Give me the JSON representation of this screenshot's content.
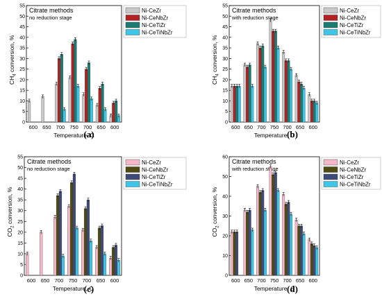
{
  "colors": {
    "Ni-CeZr": "#c8c8c8",
    "Ni-CeNbZr": "#b22222",
    "Ni-CeTiZr": "#1b7a72",
    "Ni-CeTiNbZr": "#3ec6e8",
    "Ni-CeZr-pink": "#f4b8c8",
    "Ni-CeNbZr-olive": "#4f4b12",
    "Ni-CeTiZr-navy": "#3f4a78"
  },
  "chart_data": [
    {
      "panel": "(a)",
      "type": "bar",
      "title": "Citrate methods",
      "subtitle": "no reduction stage",
      "xlabel": "Temperature, C",
      "ylabel_pre": "CH",
      "ylabel_sub": "4",
      "ylabel_post": " conversion, %",
      "ylim": [
        0,
        55
      ],
      "yticks": [
        0,
        5,
        10,
        15,
        20,
        25,
        30,
        35,
        40,
        45,
        50,
        55
      ],
      "categories": [
        "600",
        "650",
        "700",
        "750",
        "700",
        "650",
        "600"
      ],
      "series": [
        {
          "name": "Ni-CeZr",
          "color": "#c8c8c8",
          "values": [
            10,
            12,
            18,
            21,
            13,
            8,
            3
          ]
        },
        {
          "name": "Ni-CeNbZr",
          "color": "#b22222",
          "values": [
            null,
            null,
            30,
            37,
            25,
            16,
            9
          ]
        },
        {
          "name": "Ni-CeTiZr",
          "color": "#1b7a72",
          "values": [
            null,
            null,
            32,
            39,
            28,
            18,
            10
          ]
        },
        {
          "name": "Ni-CeTiNbZr",
          "color": "#3ec6e8",
          "values": [
            null,
            null,
            6,
            17,
            11,
            6,
            3
          ]
        }
      ]
    },
    {
      "panel": "(b)",
      "type": "bar",
      "title": "Citrate methods",
      "subtitle": "with reduction stage",
      "xlabel": "Temperature, C",
      "ylabel_pre": "CH",
      "ylabel_sub": "4",
      "ylabel_post": " conversion, %",
      "ylim": [
        0,
        55
      ],
      "yticks": [
        0,
        5,
        10,
        15,
        20,
        25,
        30,
        35,
        40,
        45,
        50,
        55
      ],
      "categories": [
        "600",
        "650",
        "700",
        "750",
        "700",
        "650",
        "600"
      ],
      "series": [
        {
          "name": "Ni-CeZr",
          "color": "#c8c8c8",
          "values": [
            17,
            27,
            37,
            48,
            33,
            22,
            13
          ]
        },
        {
          "name": "Ni-CeNbZr",
          "color": "#b22222",
          "values": [
            17,
            26,
            35,
            43,
            29,
            19,
            10
          ]
        },
        {
          "name": "Ni-CeTiZr",
          "color": "#1b7a72",
          "values": [
            17,
            27,
            36,
            43,
            29,
            18,
            10
          ]
        },
        {
          "name": "Ni-CeTiNbZr",
          "color": "#3ec6e8",
          "values": [
            17,
            17,
            26,
            35,
            25,
            16,
            9
          ]
        }
      ]
    },
    {
      "panel": "(c)",
      "type": "bar",
      "title": "Citrate methods",
      "subtitle": "no reduction stage",
      "xlabel": "Temperature, C",
      "ylabel_pre": "CO",
      "ylabel_sub": "2",
      "ylabel_post": " conversion, %",
      "ylim": [
        0,
        55
      ],
      "yticks": [
        0,
        5,
        10,
        15,
        20,
        25,
        30,
        35,
        40,
        45,
        50,
        55
      ],
      "categories": [
        "600",
        "650",
        "700",
        "750",
        "700",
        "650",
        "600"
      ],
      "series": [
        {
          "name": "Ni-CeZr",
          "color": "#f4b8c8",
          "values": [
            10,
            20,
            27,
            32,
            21,
            13,
            8
          ]
        },
        {
          "name": "Ni-CeNbZr",
          "color": "#4f4b12",
          "values": [
            null,
            null,
            37,
            43,
            31,
            22,
            13
          ]
        },
        {
          "name": "Ni-CeTiZr",
          "color": "#3f4a78",
          "values": [
            null,
            null,
            39,
            47,
            35,
            23,
            14
          ]
        },
        {
          "name": "Ni-CeTiNbZr",
          "color": "#3ec6e8",
          "values": [
            null,
            null,
            9,
            22,
            16,
            10,
            7
          ]
        }
      ]
    },
    {
      "panel": "(d)",
      "type": "bar",
      "title": "Citrate methods",
      "subtitle": "with reduction stage",
      "xlabel": "Temperature, C",
      "ylabel_pre": "CO",
      "ylabel_sub": "2",
      "ylabel_post": " conversion, %",
      "ylim": [
        0,
        60
      ],
      "yticks": [
        0,
        10,
        20,
        30,
        40,
        50,
        60
      ],
      "categories": [
        "600",
        "650",
        "700",
        "750",
        "700",
        "650",
        "600"
      ],
      "series": [
        {
          "name": "Ni-CeZr",
          "color": "#f4b8c8",
          "values": [
            22,
            33,
            45,
            55,
            41,
            28,
            18
          ]
        },
        {
          "name": "Ni-CeNbZr",
          "color": "#4f4b12",
          "values": [
            22,
            32,
            42,
            51,
            36,
            25,
            16
          ]
        },
        {
          "name": "Ni-CeTiZr",
          "color": "#3f4a78",
          "values": [
            22,
            33,
            43,
            52,
            37,
            25,
            15
          ]
        },
        {
          "name": "Ni-CeTiNbZr",
          "color": "#3ec6e8",
          "values": [
            null,
            23,
            33,
            43,
            31,
            21,
            14
          ]
        }
      ]
    }
  ]
}
